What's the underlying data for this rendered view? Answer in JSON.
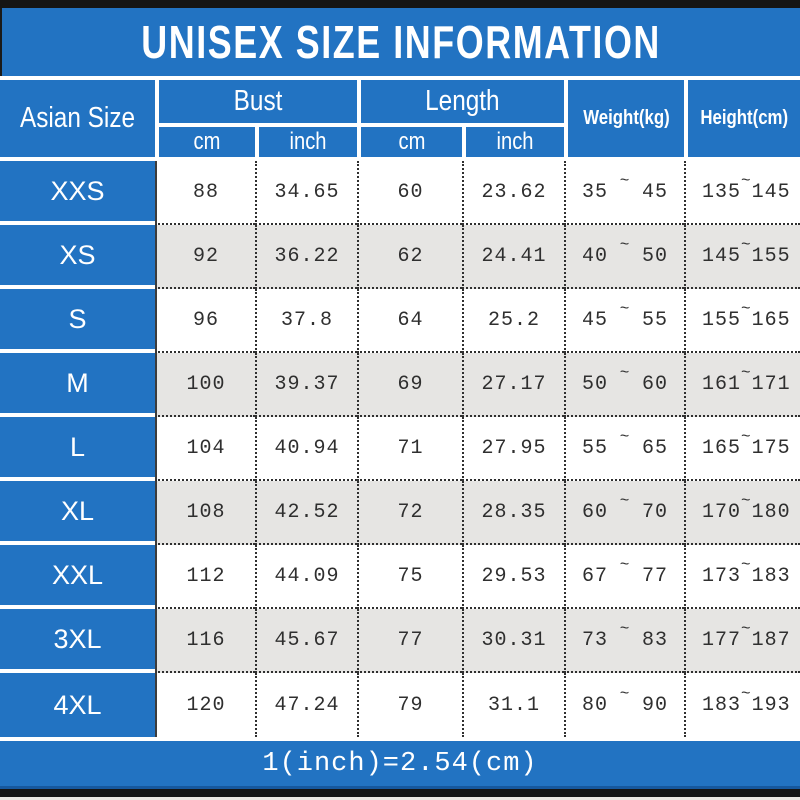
{
  "title": "UNISEX SIZE INFORMATION",
  "footer_note": "1(inch)=2.54(cm)",
  "colors": {
    "blue": "#2273c2",
    "blue_dark_edge": "#16589e",
    "black_bar": "#151515",
    "row_gray": "#e6e5e3",
    "row_white": "#ffffff",
    "data_text": "#2f2f2f"
  },
  "table": {
    "tilde": "~",
    "headers": {
      "size_col": "Asian Size",
      "bust_group": "Bust",
      "length_group": "Length",
      "bust_cm": "cm",
      "bust_inch": "inch",
      "length_cm": "cm",
      "length_inch": "inch",
      "weight": "Weight(kg)",
      "height": "Height(cm)"
    },
    "rows": [
      {
        "size": "XXS",
        "bust_cm": "88",
        "bust_inch": "34.65",
        "length_cm": "60",
        "length_inch": "23.62",
        "weight_min": "35",
        "weight_max": "45",
        "height_min": "135",
        "height_max": "145"
      },
      {
        "size": "XS",
        "bust_cm": "92",
        "bust_inch": "36.22",
        "length_cm": "62",
        "length_inch": "24.41",
        "weight_min": "40",
        "weight_max": "50",
        "height_min": "145",
        "height_max": "155"
      },
      {
        "size": "S",
        "bust_cm": "96",
        "bust_inch": "37.8",
        "length_cm": "64",
        "length_inch": "25.2",
        "weight_min": "45",
        "weight_max": "55",
        "height_min": "155",
        "height_max": "165"
      },
      {
        "size": "M",
        "bust_cm": "100",
        "bust_inch": "39.37",
        "length_cm": "69",
        "length_inch": "27.17",
        "weight_min": "50",
        "weight_max": "60",
        "height_min": "161",
        "height_max": "171"
      },
      {
        "size": "L",
        "bust_cm": "104",
        "bust_inch": "40.94",
        "length_cm": "71",
        "length_inch": "27.95",
        "weight_min": "55",
        "weight_max": "65",
        "height_min": "165",
        "height_max": "175"
      },
      {
        "size": "XL",
        "bust_cm": "108",
        "bust_inch": "42.52",
        "length_cm": "72",
        "length_inch": "28.35",
        "weight_min": "60",
        "weight_max": "70",
        "height_min": "170",
        "height_max": "180"
      },
      {
        "size": "XXL",
        "bust_cm": "112",
        "bust_inch": "44.09",
        "length_cm": "75",
        "length_inch": "29.53",
        "weight_min": "67",
        "weight_max": "77",
        "height_min": "173",
        "height_max": "183"
      },
      {
        "size": "3XL",
        "bust_cm": "116",
        "bust_inch": "45.67",
        "length_cm": "77",
        "length_inch": "30.31",
        "weight_min": "73",
        "weight_max": "83",
        "height_min": "177",
        "height_max": "187"
      },
      {
        "size": "4XL",
        "bust_cm": "120",
        "bust_inch": "47.24",
        "length_cm": "79",
        "length_inch": "31.1",
        "weight_min": "80",
        "weight_max": "90",
        "height_min": "183",
        "height_max": "193"
      }
    ]
  },
  "chart_data": {
    "type": "table",
    "title": "UNISEX SIZE INFORMATION",
    "columns": [
      "Asian Size",
      "Bust cm",
      "Bust inch",
      "Length cm",
      "Length inch",
      "Weight(kg)",
      "Height(cm)"
    ],
    "rows": [
      [
        "XXS",
        "88",
        "34.65",
        "60",
        "23.62",
        "35 ~ 45",
        "135 ~ 145"
      ],
      [
        "XS",
        "92",
        "36.22",
        "62",
        "24.41",
        "40 ~ 50",
        "145 ~ 155"
      ],
      [
        "S",
        "96",
        "37.8",
        "64",
        "25.2",
        "45 ~ 55",
        "155 ~ 165"
      ],
      [
        "M",
        "100",
        "39.37",
        "69",
        "27.17",
        "50 ~ 60",
        "161 ~ 171"
      ],
      [
        "L",
        "104",
        "40.94",
        "71",
        "27.95",
        "55 ~ 65",
        "165 ~ 175"
      ],
      [
        "XL",
        "108",
        "42.52",
        "72",
        "28.35",
        "60 ~ 70",
        "170 ~ 180"
      ],
      [
        "XXL",
        "112",
        "44.09",
        "75",
        "29.53",
        "67 ~ 77",
        "173 ~ 183"
      ],
      [
        "3XL",
        "116",
        "45.67",
        "77",
        "30.31",
        "73 ~ 83",
        "177 ~ 187"
      ],
      [
        "4XL",
        "120",
        "47.24",
        "79",
        "31.1",
        "80 ~ 90",
        "183 ~ 193"
      ]
    ],
    "footnote": "1(inch)=2.54(cm)"
  }
}
